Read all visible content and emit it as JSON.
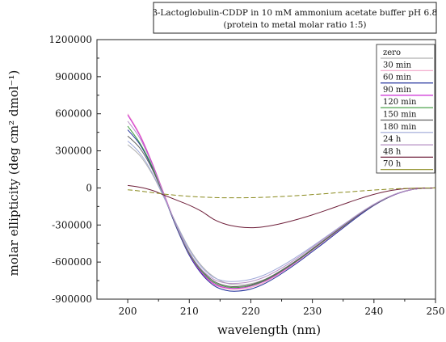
{
  "chart_data": {
    "type": "line",
    "title_lines": [
      "β-Lactoglobulin-CDDP in 10 mM ammonium acetate buffer pH 6.8",
      "(protein to metal molar ratio 1:5)"
    ],
    "xlabel": "wavelength (nm)",
    "ylabel": "molar ellipticity (deg cm² dmol⁻¹)",
    "xlim": [
      195,
      250
    ],
    "ylim": [
      -900000,
      1200000
    ],
    "x_ticks": [
      200,
      210,
      220,
      230,
      240,
      250
    ],
    "x_tick_labels": [
      "200",
      "210",
      "220",
      "230",
      "240",
      "250"
    ],
    "y_ticks": [
      -900000,
      -600000,
      -300000,
      0,
      300000,
      600000,
      900000,
      1200000
    ],
    "y_tick_labels": [
      "-900000",
      "-600000",
      "-300000",
      "0",
      "300000",
      "600000",
      "900000",
      "1200000"
    ],
    "grid": false,
    "legend_position": "top-right",
    "x": [
      200,
      202,
      204,
      206,
      208,
      210,
      212,
      214,
      216,
      218,
      220,
      222,
      224,
      226,
      228,
      230,
      232,
      234,
      236,
      238,
      240,
      242,
      244,
      246,
      248,
      250
    ],
    "series": [
      {
        "name": "zero",
        "color": "#b0b0b0",
        "values": [
          350000,
          260000,
          110000,
          -90000,
          -300000,
          -490000,
          -630000,
          -720000,
          -770000,
          -785000,
          -775000,
          -745000,
          -700000,
          -640000,
          -575000,
          -505000,
          -430000,
          -355000,
          -280000,
          -205000,
          -140000,
          -85000,
          -42000,
          -15000,
          -3000,
          0
        ]
      },
      {
        "name": "30 min",
        "color": "#f2a3c7",
        "values": [
          600000,
          430000,
          200000,
          -60000,
          -320000,
          -540000,
          -690000,
          -780000,
          -815000,
          -820000,
          -805000,
          -770000,
          -715000,
          -650000,
          -580000,
          -505000,
          -430000,
          -355000,
          -280000,
          -205000,
          -140000,
          -85000,
          -42000,
          -15000,
          -3000,
          0
        ]
      },
      {
        "name": "60 min",
        "color": "#1f2f9a",
        "values": [
          470000,
          350000,
          160000,
          -80000,
          -330000,
          -545000,
          -695000,
          -790000,
          -830000,
          -835000,
          -818000,
          -780000,
          -725000,
          -660000,
          -590000,
          -515000,
          -440000,
          -362000,
          -285000,
          -210000,
          -142000,
          -86000,
          -43000,
          -15000,
          -3000,
          0
        ]
      },
      {
        "name": "90 min",
        "color": "#cc2bd6",
        "values": [
          590000,
          420000,
          195000,
          -65000,
          -320000,
          -535000,
          -685000,
          -775000,
          -808000,
          -812000,
          -795000,
          -760000,
          -708000,
          -645000,
          -575000,
          -500000,
          -425000,
          -350000,
          -275000,
          -202000,
          -138000,
          -84000,
          -42000,
          -15000,
          -3000,
          0
        ]
      },
      {
        "name": "120 min",
        "color": "#3a9a3a",
        "values": [
          500000,
          360000,
          170000,
          -75000,
          -320000,
          -530000,
          -675000,
          -765000,
          -800000,
          -805000,
          -790000,
          -755000,
          -702000,
          -640000,
          -572000,
          -498000,
          -423000,
          -348000,
          -274000,
          -201000,
          -137000,
          -83000,
          -41000,
          -14000,
          -3000,
          0
        ]
      },
      {
        "name": "150 min",
        "color": "#606060",
        "values": [
          420000,
          320000,
          150000,
          -80000,
          -315000,
          -520000,
          -665000,
          -755000,
          -792000,
          -798000,
          -783000,
          -748000,
          -696000,
          -634000,
          -566000,
          -493000,
          -419000,
          -345000,
          -272000,
          -200000,
          -136000,
          -83000,
          -41000,
          -14000,
          -3000,
          0
        ]
      },
      {
        "name": "180 min",
        "color": "#9ea8d8",
        "values": [
          380000,
          280000,
          120000,
          -85000,
          -305000,
          -500000,
          -640000,
          -725000,
          -755000,
          -755000,
          -740000,
          -708000,
          -660000,
          -603000,
          -540000,
          -472000,
          -402000,
          -332000,
          -262000,
          -194000,
          -132000,
          -80000,
          -40000,
          -14000,
          -3000,
          0
        ]
      },
      {
        "name": "24 h",
        "color": "#b58fc4",
        "values": [
          540000,
          400000,
          185000,
          -70000,
          -315000,
          -520000,
          -660000,
          -740000,
          -770000,
          -772000,
          -758000,
          -726000,
          -677000,
          -618000,
          -552000,
          -481000,
          -409000,
          -337000,
          -265000,
          -195000,
          -133000,
          -81000,
          -40000,
          -14000,
          -3000,
          0
        ]
      },
      {
        "name": "48 h",
        "color": "#6e1f3a",
        "values": [
          20000,
          5000,
          -20000,
          -60000,
          -100000,
          -140000,
          -190000,
          -255000,
          -295000,
          -315000,
          -322000,
          -315000,
          -298000,
          -275000,
          -248000,
          -218000,
          -185000,
          -150000,
          -115000,
          -82000,
          -52000,
          -28000,
          -12000,
          -4000,
          -1000,
          0
        ]
      },
      {
        "name": "70 h",
        "color": "#8a8a1e",
        "values": [
          -15000,
          -25000,
          -38000,
          -50000,
          -60000,
          -68000,
          -74000,
          -78000,
          -80000,
          -80000,
          -79000,
          -76000,
          -72000,
          -67000,
          -61000,
          -54000,
          -47000,
          -39000,
          -32000,
          -24000,
          -17000,
          -11000,
          -6000,
          -3000,
          -1000,
          0
        ]
      }
    ]
  }
}
